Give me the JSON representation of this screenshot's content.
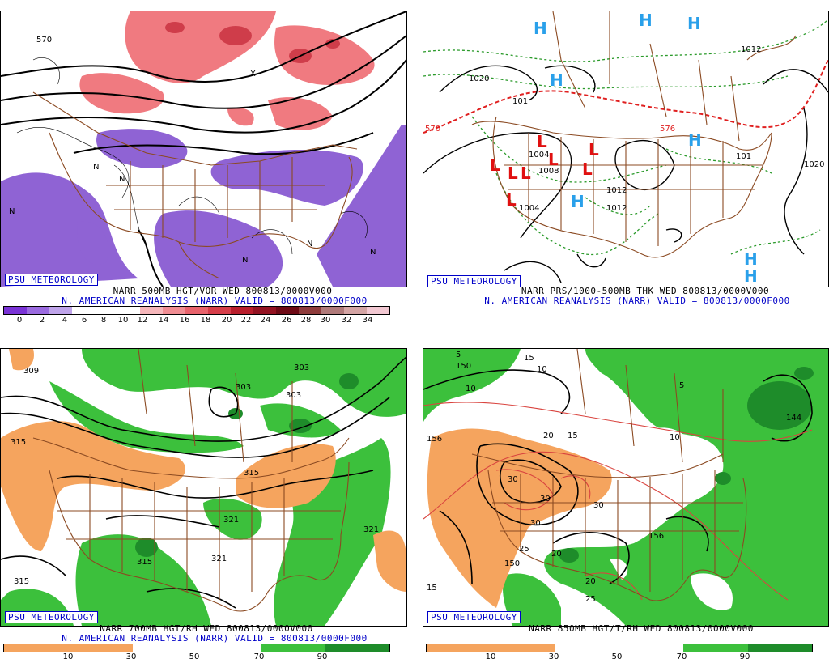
{
  "panels": {
    "tl": {
      "badge": "PSU METEOROLOGY",
      "line1": "NARR 500MB HGT/VOR WED 800813/0000V000",
      "line2": "N. AMERICAN REANALYSIS (NARR) VALID = 800813/0000F000",
      "scale": [
        "0",
        "2",
        "4",
        "6",
        "8",
        "10",
        "12",
        "14",
        "16",
        "18",
        "20",
        "22",
        "24",
        "26",
        "28",
        "30",
        "32",
        "34"
      ],
      "labels": [
        "570",
        "N",
        "N",
        "N",
        "N",
        "N",
        "X",
        "N"
      ]
    },
    "tr": {
      "badge": "PSU METEOROLOGY",
      "line1": "NARR PRS/1000-500MB THK WED 800813/0000V000",
      "line2": "N. AMERICAN REANALYSIS (NARR) VALID = 800813/0000F000",
      "labels": [
        "1020",
        "101",
        "570",
        "576",
        "1004",
        "1008",
        "1012",
        "1012",
        "101",
        "1020",
        "1012",
        "1004"
      ]
    },
    "bl": {
      "badge": "PSU METEOROLOGY",
      "line1": "NARR 700MB HGT/RH WED 800813/0000V000",
      "line2": "N. AMERICAN REANALYSIS (NARR) VALID = 800813/0000F000",
      "scale": [
        "10",
        "30",
        "50",
        "70",
        "90"
      ],
      "labels": [
        "309",
        "315",
        "303",
        "303",
        "303",
        "315",
        "321",
        "315",
        "321",
        "321",
        "315"
      ]
    },
    "br": {
      "badge": "PSU METEOROLOGY",
      "line1": "NARR 850MB HGT/T/RH WED 800813/0000V000",
      "scale": [
        "10",
        "30",
        "50",
        "70",
        "90"
      ],
      "labels": [
        "150",
        "156",
        "5",
        "15",
        "10",
        "10",
        "15",
        "20",
        "10",
        "5",
        "144",
        "30",
        "30",
        "30",
        "30",
        "156",
        "25",
        "20",
        "20",
        "150",
        "15",
        "25"
      ]
    }
  },
  "colors": {
    "vor_purple": "#8f63d4",
    "vor_red": "#f07a80",
    "vor_darkred": "#cf3d4a",
    "rh_green": "#3cc03c",
    "rh_darkgreen": "#1e8c2a",
    "rh_orange": "#f5a45e",
    "border_brown": "#8b4a22",
    "label_blue": "#0000c8",
    "thk_green": "#2a9a2a",
    "thk_red": "#e02020",
    "high_blue": "#2aa0ea",
    "low_red": "#e01010"
  }
}
